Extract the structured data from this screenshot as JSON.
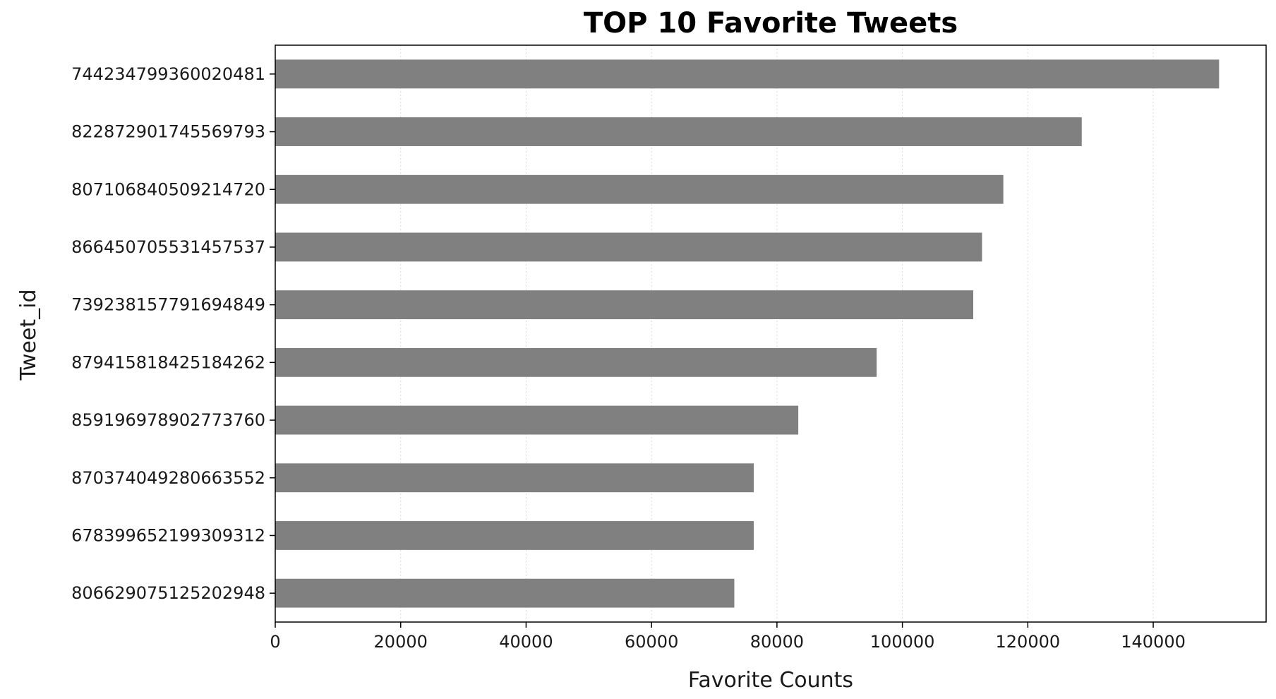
{
  "chart_data": {
    "type": "bar",
    "orientation": "horizontal",
    "title": "TOP 10 Favorite Tweets",
    "xlabel": "Favorite Counts",
    "ylabel": "Tweet_id",
    "categories": [
      "744234799360020481",
      "822872901745569793",
      "807106840509214720",
      "866450705531457537",
      "739238157791694849",
      "879415818425184262",
      "859196978902773760",
      "870374049280663552",
      "678399652199309312",
      "806629075125202948"
    ],
    "values": [
      150500,
      128600,
      116100,
      112700,
      111300,
      95900,
      83400,
      76300,
      76300,
      73200
    ],
    "xlim": [
      0,
      158000
    ],
    "xticks": [
      0,
      20000,
      40000,
      60000,
      80000,
      100000,
      120000,
      140000
    ],
    "bar_color": "#808080",
    "grid": {
      "x": true,
      "y": false,
      "color": "#d9d9d9",
      "style": "dotted"
    },
    "legend": "none"
  }
}
